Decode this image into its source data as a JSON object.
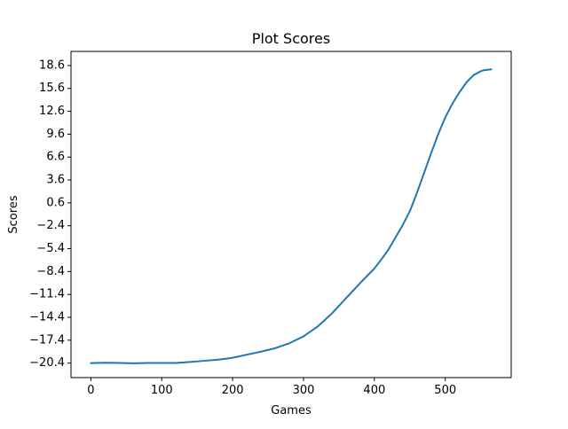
{
  "chart_data": {
    "type": "line",
    "title": "Plot Scores",
    "xlabel": "Games",
    "ylabel": "Scores",
    "xlim": [
      -28,
      593
    ],
    "ylim": [
      -22.3,
      20.45
    ],
    "xticks": [
      0,
      100,
      200,
      300,
      400,
      500
    ],
    "yticks": [
      -20.4,
      -17.4,
      -14.4,
      -11.4,
      -8.4,
      -5.4,
      -2.4,
      0.6,
      3.6,
      6.6,
      9.6,
      12.6,
      15.6,
      18.6
    ],
    "ytick_labels": [
      "−20.4",
      "−17.4",
      "−14.4",
      "−11.4",
      "−8.4",
      "−5.4",
      "−2.4",
      "0.6",
      "3.6",
      "6.6",
      "9.6",
      "12.6",
      "15.6",
      "18.6"
    ],
    "grid": false,
    "series": [
      {
        "color": "#1f77b4",
        "x": [
          0,
          20,
          40,
          60,
          80,
          100,
          120,
          140,
          160,
          180,
          200,
          220,
          240,
          260,
          280,
          300,
          320,
          340,
          360,
          380,
          400,
          410,
          420,
          430,
          440,
          450,
          460,
          470,
          480,
          490,
          500,
          510,
          520,
          530,
          540,
          550,
          555,
          565
        ],
        "y": [
          -20.4,
          -20.35,
          -20.38,
          -20.42,
          -20.38,
          -20.38,
          -20.38,
          -20.25,
          -20.1,
          -19.95,
          -19.7,
          -19.3,
          -18.9,
          -18.45,
          -17.8,
          -16.9,
          -15.6,
          -13.9,
          -11.9,
          -9.9,
          -8.0,
          -6.8,
          -5.5,
          -3.9,
          -2.3,
          -0.5,
          1.9,
          4.5,
          7.1,
          9.6,
          11.8,
          13.6,
          15.1,
          16.4,
          17.35,
          17.85,
          18.0,
          18.1
        ]
      }
    ]
  }
}
